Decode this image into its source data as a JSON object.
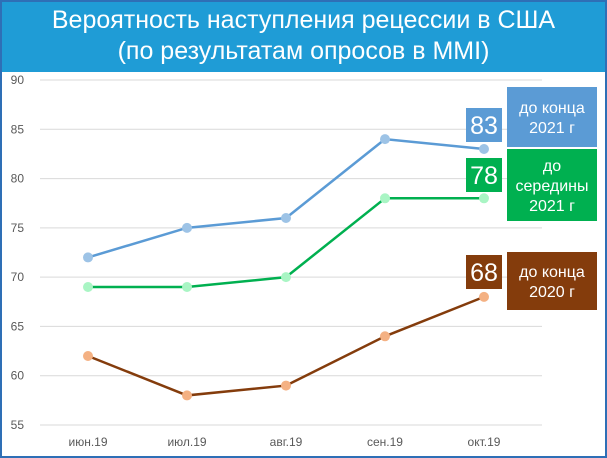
{
  "title": {
    "line1": "Вероятность наступления рецессии в США",
    "line2": "(по результатам опросов в ММI)"
  },
  "colors": {
    "title_band": "#1f9cd6",
    "frame": "#2e6fb6",
    "grid": "#d9d9d9",
    "tick_text": "#595959"
  },
  "chart_data": {
    "type": "line",
    "title": "Вероятность наступления рецессии в США (по результатам опросов в ММI)",
    "categories": [
      "июн.19",
      "июл.19",
      "авг.19",
      "сен.19",
      "окт.19"
    ],
    "ylim": [
      55,
      90
    ],
    "yticks": [
      55,
      60,
      65,
      70,
      75,
      80,
      85,
      90
    ],
    "grid": "horizontal",
    "xlabel": "",
    "ylabel": "",
    "series": [
      {
        "id": "s2021",
        "values": [
          72,
          75,
          76,
          84,
          83
        ],
        "line_color": "#5b9bd5",
        "marker_color": "#9dc3e6",
        "end_label": "83",
        "box_lines": [
          "до конца",
          "2021 г"
        ],
        "box_color": "#5b9bd5"
      },
      {
        "id": "smid2021",
        "values": [
          69,
          69,
          70,
          78,
          78
        ],
        "line_color": "#00b050",
        "marker_color": "#a9f5c4",
        "end_label": "78",
        "box_lines": [
          "до",
          "середины",
          "2021 г"
        ],
        "box_color": "#00b050"
      },
      {
        "id": "s2020",
        "values": [
          62,
          58,
          59,
          64,
          68
        ],
        "line_color": "#843c0c",
        "marker_color": "#f4b183",
        "end_label": "68",
        "box_lines": [
          "до конца",
          "2020 г"
        ],
        "box_color": "#843c0c"
      }
    ]
  }
}
